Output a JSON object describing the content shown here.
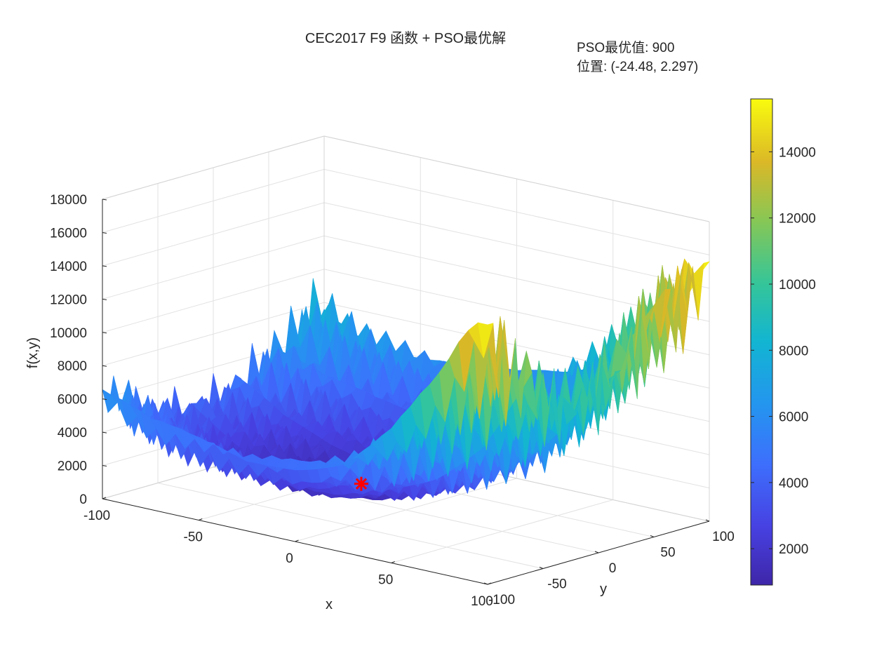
{
  "chart_data": {
    "type": "surface",
    "title": "CEC2017 F9 函数 + PSO最优解",
    "annotation_lines": [
      "PSO最优值: 900",
      "位置: (-24.48, 2.297)"
    ],
    "xlabel": "x",
    "ylabel": "y",
    "zlabel": "f(x,y)",
    "xlim": [
      -100,
      100
    ],
    "ylim": [
      -100,
      100
    ],
    "zlim": [
      0,
      18000
    ],
    "xticks": [
      -100,
      -50,
      0,
      50,
      100
    ],
    "yticks": [
      -100,
      -50,
      0,
      50,
      100
    ],
    "zticks": [
      0,
      2000,
      4000,
      6000,
      8000,
      10000,
      12000,
      14000,
      16000,
      18000
    ],
    "grid": true,
    "colormap": "parula",
    "colorbar": {
      "range": [
        900,
        15600
      ],
      "ticks": [
        2000,
        4000,
        6000,
        8000,
        10000,
        12000,
        14000
      ],
      "position": "right"
    },
    "pso_best": {
      "x": -24.48,
      "y": 2.297,
      "f": 900,
      "marker": "red-asterisk",
      "color": "#ff0000"
    },
    "surface_grid": {
      "x": [
        -100,
        -75,
        -50,
        -25,
        0,
        25,
        50,
        75,
        100
      ],
      "y": [
        -100,
        -75,
        -50,
        -25,
        0,
        25,
        50,
        75,
        100
      ],
      "z": [
        [
          6600,
          5000,
          4500,
          4200,
          4800,
          5800,
          8000,
          11000,
          15600
        ],
        [
          5000,
          3600,
          2900,
          2600,
          2900,
          3800,
          5600,
          8200,
          12500
        ],
        [
          4400,
          2800,
          2000,
          1600,
          1900,
          2800,
          4300,
          6600,
          10500
        ],
        [
          4000,
          2400,
          1400,
          1000,
          1300,
          2200,
          3700,
          5800,
          9500
        ],
        [
          4200,
          2600,
          1700,
          1300,
          1600,
          2500,
          4000,
          6200,
          10000
        ],
        [
          4800,
          3200,
          2400,
          2000,
          2300,
          3200,
          4800,
          7100,
          11200
        ],
        [
          5800,
          4200,
          3400,
          3000,
          3300,
          4200,
          5900,
          8400,
          12800
        ],
        [
          7000,
          5400,
          4600,
          4200,
          4500,
          5500,
          7300,
          10000,
          14200
        ],
        [
          8200,
          6800,
          6000,
          5600,
          5900,
          7000,
          8900,
          11800,
          15600
        ]
      ]
    }
  }
}
